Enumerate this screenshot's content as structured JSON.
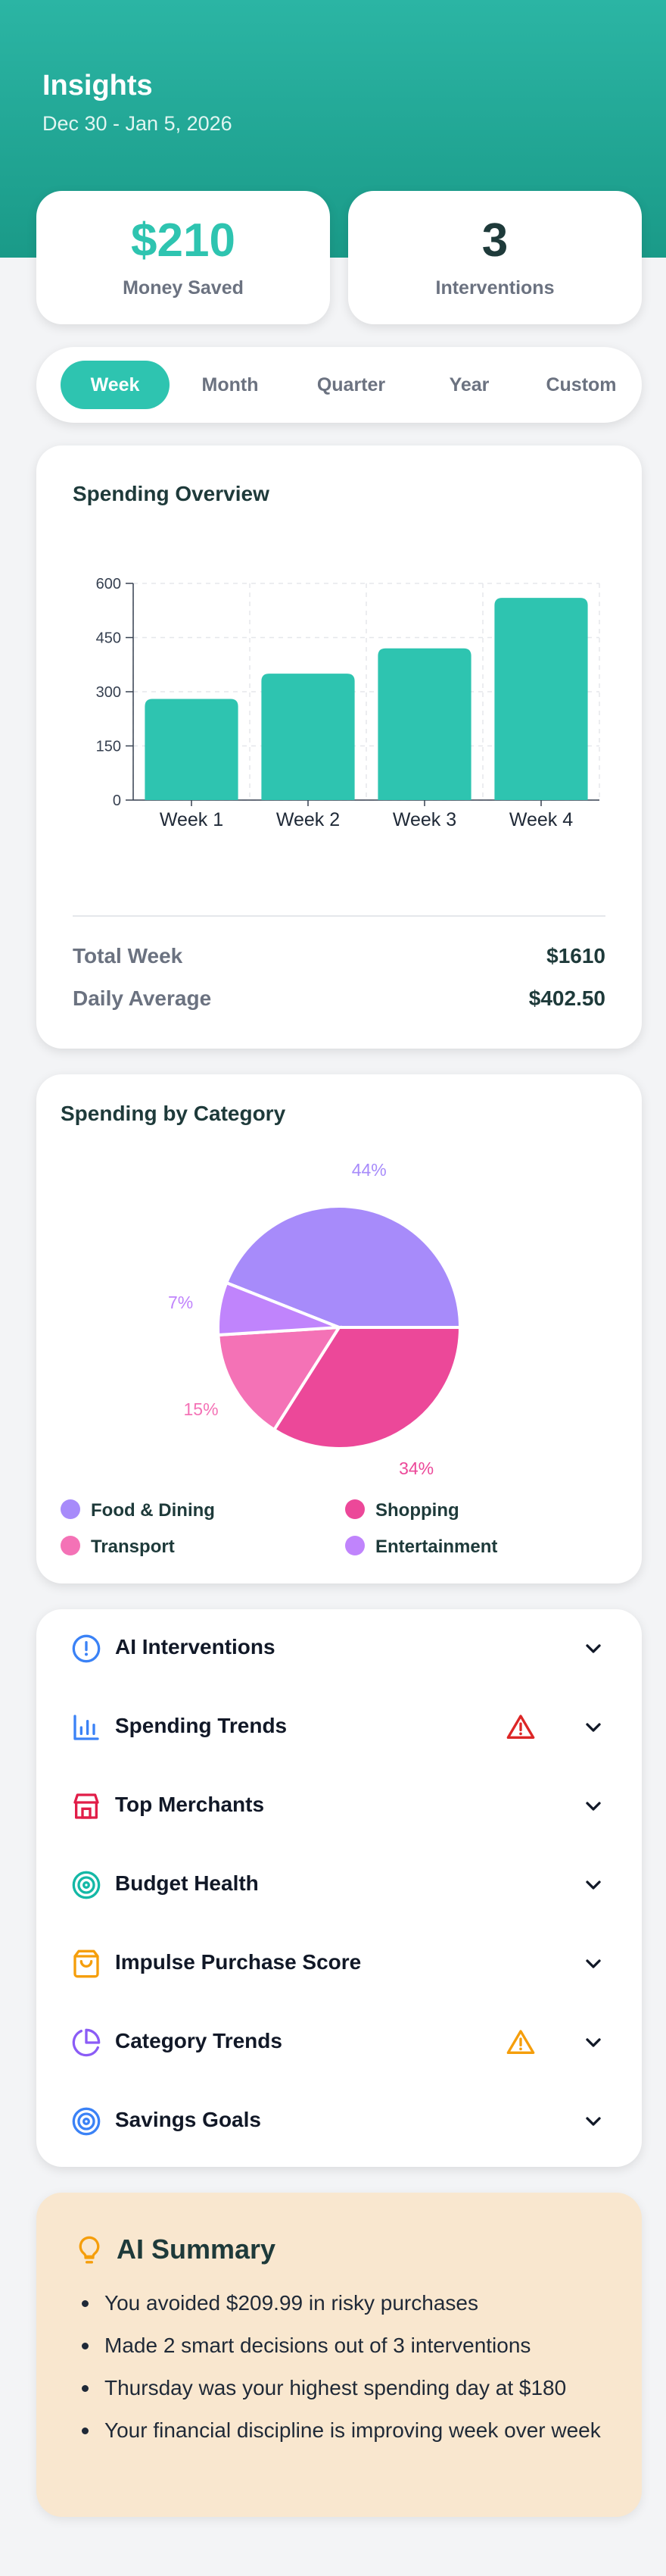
{
  "header": {
    "title": "Insights",
    "date_range": "Dec 30 - Jan 5, 2026"
  },
  "stats": [
    {
      "value": "$210",
      "label": "Money Saved",
      "color": "#2ec4b0"
    },
    {
      "value": "3",
      "label": "Interventions",
      "color": "#1e3a3a"
    }
  ],
  "tabs": [
    {
      "label": "Week",
      "active": true
    },
    {
      "label": "Month",
      "active": false
    },
    {
      "label": "Quarter",
      "active": false
    },
    {
      "label": "Year",
      "active": false
    },
    {
      "label": "Custom",
      "active": false
    }
  ],
  "spending_overview": {
    "title": "Spending Overview",
    "total_label": "Total Week",
    "total_value": "$1610",
    "avg_label": "Daily Average",
    "avg_value": "$402.50"
  },
  "category": {
    "title": "Spending by Category",
    "legend": [
      {
        "label": "Food & Dining",
        "color": "#a78bfa"
      },
      {
        "label": "Shopping",
        "color": "#ec4899"
      },
      {
        "label": "Transport",
        "color": "#f472b6"
      },
      {
        "label": "Entertainment",
        "color": "#c084fc"
      }
    ]
  },
  "accordion": [
    {
      "label": "AI Interventions",
      "icon": "alert-circle-icon",
      "color": "#3b82f6",
      "warning": false
    },
    {
      "label": "Spending Trends",
      "icon": "bar-chart-icon",
      "color": "#3b82f6",
      "warning": true,
      "warning_color": "#dc2626"
    },
    {
      "label": "Top Merchants",
      "icon": "store-icon",
      "color": "#e11d48",
      "warning": false
    },
    {
      "label": "Budget Health",
      "icon": "target-icon",
      "color": "#14b8a6",
      "warning": false
    },
    {
      "label": "Impulse Purchase Score",
      "icon": "shopping-bag-icon",
      "color": "#f59e0b",
      "warning": false
    },
    {
      "label": "Category Trends",
      "icon": "pie-chart-icon",
      "color": "#8b5cf6",
      "warning": true,
      "warning_color": "#f59e0b"
    },
    {
      "label": "Savings Goals",
      "icon": "target-icon",
      "color": "#3b82f6",
      "warning": false
    }
  ],
  "ai_summary": {
    "title": "AI Summary",
    "items": [
      "You avoided $209.99 in risky purchases",
      "Made 2 smart decisions out of 3 interventions",
      "Thursday was your highest spending day at $180",
      "Your financial discipline is improving week over week"
    ]
  },
  "chart_data": [
    {
      "type": "bar",
      "title": "Spending Overview",
      "categories": [
        "Week 1",
        "Week 2",
        "Week 3",
        "Week 4"
      ],
      "values": [
        280,
        350,
        420,
        560
      ],
      "yticks": [
        0,
        150,
        300,
        450,
        600
      ],
      "ylim": [
        0,
        600
      ],
      "grid": true,
      "color": "#2ec4b0"
    },
    {
      "type": "pie",
      "title": "Spending by Category",
      "slices": [
        {
          "name": "Food & Dining",
          "percent": 44,
          "label": "44%",
          "color": "#a78bfa"
        },
        {
          "name": "Shopping",
          "percent": 34,
          "label": "34%",
          "color": "#ec4899"
        },
        {
          "name": "Transport",
          "percent": 15,
          "label": "15%",
          "color": "#f472b6"
        },
        {
          "name": "Entertainment",
          "percent": 7,
          "label": "7%",
          "color": "#c084fc"
        }
      ]
    }
  ]
}
